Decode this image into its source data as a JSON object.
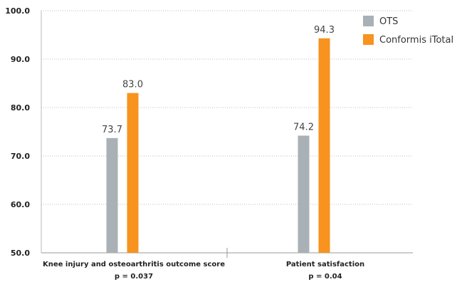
{
  "chart_data": {
    "type": "bar",
    "categories": [
      "Knee injury and osteoarthritis outcome score",
      "Patient satisfaction"
    ],
    "category_notes": [
      "p = 0.037",
      "p = 0.04"
    ],
    "series": [
      {
        "name": "OTS",
        "values": [
          73.7,
          74.2
        ],
        "color": "#a9b1b7"
      },
      {
        "name": "Conformis iTotal",
        "values": [
          83.0,
          94.3
        ],
        "color": "#f7931e"
      }
    ],
    "ylim": [
      50,
      100
    ],
    "yticks": [
      "50.0",
      "60.0",
      "70.0",
      "80.0",
      "90.0",
      "100.0"
    ],
    "grid": true,
    "legend_position": "top-right",
    "title": "",
    "xlabel": "",
    "ylabel": ""
  }
}
